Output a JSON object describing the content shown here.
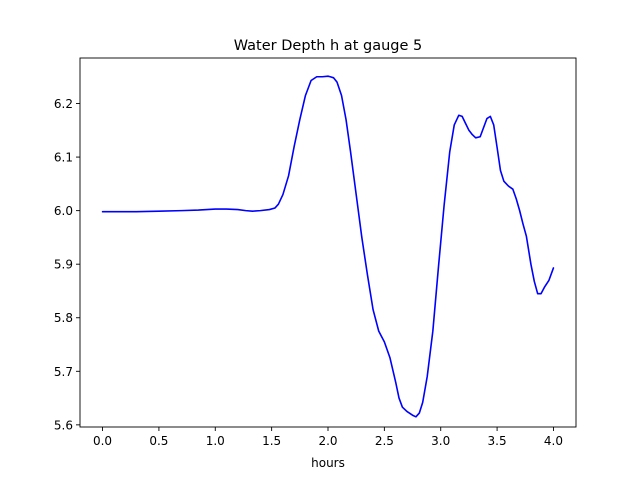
{
  "chart_data": {
    "type": "line",
    "title": "Water Depth h at gauge 5",
    "xlabel": "hours",
    "ylabel": "",
    "xlim": [
      -0.2,
      4.2
    ],
    "ylim": [
      5.596,
      6.285
    ],
    "xticks": [
      0.0,
      0.5,
      1.0,
      1.5,
      2.0,
      2.5,
      3.0,
      3.5,
      4.0
    ],
    "xtick_labels": [
      "0.0",
      "0.5",
      "1.0",
      "1.5",
      "2.0",
      "2.5",
      "3.0",
      "3.5",
      "4.0"
    ],
    "yticks": [
      5.6,
      5.7,
      5.8,
      5.9,
      6.0,
      6.1,
      6.2
    ],
    "ytick_labels": [
      "5.6",
      "5.7",
      "5.8",
      "5.9",
      "6.0",
      "6.1",
      "6.2"
    ],
    "grid": false,
    "legend": "none",
    "series": [
      {
        "color": "#0000ff",
        "x": [
          0.0,
          0.3,
          0.5,
          0.7,
          0.85,
          1.0,
          1.1,
          1.2,
          1.27,
          1.33,
          1.4,
          1.48,
          1.53,
          1.56,
          1.6,
          1.65,
          1.7,
          1.75,
          1.8,
          1.85,
          1.9,
          1.95,
          2.0,
          2.02,
          2.05,
          2.08,
          2.12,
          2.16,
          2.2,
          2.25,
          2.3,
          2.35,
          2.4,
          2.45,
          2.5,
          2.55,
          2.6,
          2.63,
          2.66,
          2.7,
          2.75,
          2.78,
          2.81,
          2.84,
          2.88,
          2.93,
          2.98,
          3.03,
          3.08,
          3.12,
          3.16,
          3.19,
          3.22,
          3.25,
          3.28,
          3.31,
          3.35,
          3.38,
          3.41,
          3.44,
          3.47,
          3.5,
          3.53,
          3.56,
          3.6,
          3.64,
          3.67,
          3.7,
          3.73,
          3.76,
          3.8,
          3.83,
          3.86,
          3.89,
          3.92,
          3.96,
          4.0
        ],
        "y": [
          5.998,
          5.998,
          5.999,
          6.0,
          6.001,
          6.003,
          6.003,
          6.002,
          6.0,
          5.999,
          6.0,
          6.002,
          6.005,
          6.012,
          6.03,
          6.065,
          6.12,
          6.17,
          6.215,
          6.243,
          6.25,
          6.25,
          6.251,
          6.25,
          6.248,
          6.24,
          6.215,
          6.17,
          6.11,
          6.03,
          5.95,
          5.88,
          5.815,
          5.775,
          5.755,
          5.725,
          5.68,
          5.65,
          5.633,
          5.625,
          5.618,
          5.615,
          5.622,
          5.642,
          5.69,
          5.775,
          5.895,
          6.01,
          6.11,
          6.16,
          6.178,
          6.176,
          6.163,
          6.15,
          6.142,
          6.136,
          6.138,
          6.155,
          6.172,
          6.176,
          6.16,
          6.118,
          6.075,
          6.055,
          6.046,
          6.04,
          6.022,
          6.0,
          5.975,
          5.952,
          5.9,
          5.868,
          5.845,
          5.845,
          5.857,
          5.87,
          5.893
        ]
      }
    ]
  }
}
